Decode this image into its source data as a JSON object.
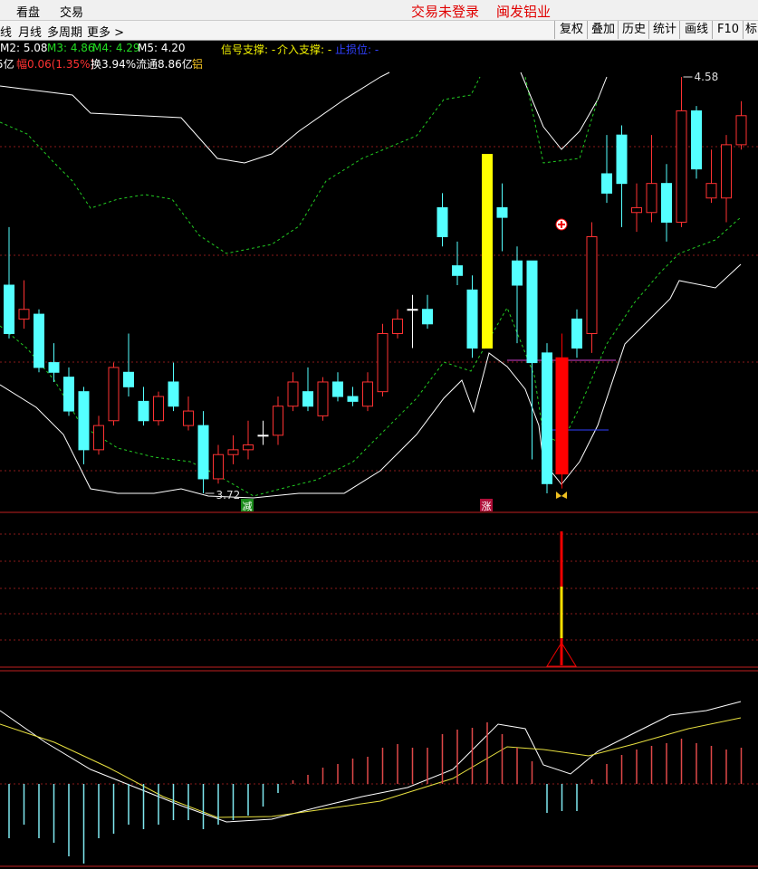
{
  "top_bar": {
    "menu": [
      "看盘",
      "交易"
    ],
    "status": "交易未登录",
    "stock": "闽发铝业"
  },
  "tabs": [
    "线",
    "月线",
    "多周期",
    "更多 >"
  ],
  "tools": [
    "复权",
    "叠加",
    "历史",
    "统计",
    "画线",
    "F10",
    "标"
  ],
  "ma_row": {
    "m2": "M2: 5.08",
    "m3": "M3: 4.86",
    "m4": "M4: 4.29",
    "m5": "M5: 4.20",
    "signal": "信号支撑: -",
    "entry": "介入支撑: -",
    "stop": "止损位: -"
  },
  "info_row": {
    "amount": "5亿",
    "change": "幅0.06(1.35%)",
    "turnover": "换3.94%",
    "float": "流通8.86亿",
    "sector": "铝"
  },
  "chart": {
    "high": 4.58,
    "low": 3.72,
    "up_color": "#ff3232",
    "down_color": "#54ffff",
    "doji_color": "#ffffff",
    "markers": [
      {
        "label": "减",
        "color": "#1a8a1a"
      },
      {
        "label": "涨",
        "color": "#b0103a"
      }
    ],
    "candles": [
      {
        "o": 4.15,
        "h": 4.27,
        "l": 4.04,
        "c": 4.05
      },
      {
        "o": 4.08,
        "h": 4.16,
        "l": 4.06,
        "c": 4.1
      },
      {
        "o": 4.09,
        "h": 4.1,
        "l": 3.97,
        "c": 3.98
      },
      {
        "o": 3.99,
        "h": 4.03,
        "l": 3.95,
        "c": 3.97
      },
      {
        "o": 3.96,
        "h": 3.98,
        "l": 3.88,
        "c": 3.89
      },
      {
        "o": 3.93,
        "h": 3.94,
        "l": 3.78,
        "c": 3.81
      },
      {
        "o": 3.81,
        "h": 3.88,
        "l": 3.8,
        "c": 3.86
      },
      {
        "o": 3.87,
        "h": 3.99,
        "l": 3.86,
        "c": 3.98
      },
      {
        "o": 3.97,
        "h": 4.05,
        "l": 3.92,
        "c": 3.94
      },
      {
        "o": 3.91,
        "h": 3.94,
        "l": 3.86,
        "c": 3.87
      },
      {
        "o": 3.87,
        "h": 3.93,
        "l": 3.86,
        "c": 3.92
      },
      {
        "o": 3.95,
        "h": 3.99,
        "l": 3.89,
        "c": 3.9
      },
      {
        "o": 3.86,
        "h": 3.92,
        "l": 3.85,
        "c": 3.89
      },
      {
        "o": 3.86,
        "h": 3.89,
        "l": 3.72,
        "c": 3.75
      },
      {
        "o": 3.75,
        "h": 3.82,
        "l": 3.74,
        "c": 3.8
      },
      {
        "o": 3.8,
        "h": 3.84,
        "l": 3.78,
        "c": 3.81
      },
      {
        "o": 3.81,
        "h": 3.87,
        "l": 3.79,
        "c": 3.82
      },
      {
        "o": 3.84,
        "h": 3.87,
        "l": 3.82,
        "c": 3.84
      },
      {
        "o": 3.84,
        "h": 3.92,
        "l": 3.82,
        "c": 3.9
      },
      {
        "o": 3.9,
        "h": 3.97,
        "l": 3.89,
        "c": 3.95
      },
      {
        "o": 3.93,
        "h": 3.98,
        "l": 3.89,
        "c": 3.9
      },
      {
        "o": 3.88,
        "h": 3.96,
        "l": 3.87,
        "c": 3.95
      },
      {
        "o": 3.95,
        "h": 3.97,
        "l": 3.91,
        "c": 3.92
      },
      {
        "o": 3.92,
        "h": 3.94,
        "l": 3.9,
        "c": 3.91
      },
      {
        "o": 3.9,
        "h": 3.97,
        "l": 3.89,
        "c": 3.95
      },
      {
        "o": 3.93,
        "h": 4.07,
        "l": 3.92,
        "c": 4.05
      },
      {
        "o": 4.05,
        "h": 4.1,
        "l": 4.04,
        "c": 4.08
      },
      {
        "o": 4.1,
        "h": 4.13,
        "l": 4.02,
        "c": 4.1
      },
      {
        "o": 4.1,
        "h": 4.13,
        "l": 4.06,
        "c": 4.07
      },
      {
        "o": 4.31,
        "h": 4.34,
        "l": 4.23,
        "c": 4.25
      },
      {
        "o": 4.19,
        "h": 4.24,
        "l": 4.15,
        "c": 4.17
      },
      {
        "o": 4.14,
        "h": 4.17,
        "l": 4.0,
        "c": 4.02
      },
      {
        "o": 4.42,
        "h": 4.42,
        "l": 4.02,
        "c": 4.02,
        "color": "#ffff00"
      },
      {
        "o": 4.31,
        "h": 4.36,
        "l": 4.22,
        "c": 4.29
      },
      {
        "o": 4.2,
        "h": 4.23,
        "l": 4.03,
        "c": 4.15
      },
      {
        "o": 4.2,
        "h": 4.2,
        "l": 3.79,
        "c": 3.99
      },
      {
        "o": 4.01,
        "h": 4.03,
        "l": 3.72,
        "c": 3.74
      },
      {
        "o": 3.76,
        "h": 4.05,
        "l": 3.73,
        "c": 4.0,
        "color": "#ff0000"
      },
      {
        "o": 4.08,
        "h": 4.1,
        "l": 4.0,
        "c": 4.02
      },
      {
        "o": 4.05,
        "h": 4.28,
        "l": 4.01,
        "c": 4.25
      },
      {
        "o": 4.38,
        "h": 4.46,
        "l": 4.32,
        "c": 4.34
      },
      {
        "o": 4.46,
        "h": 4.48,
        "l": 4.27,
        "c": 4.36
      },
      {
        "o": 4.3,
        "h": 4.36,
        "l": 4.26,
        "c": 4.31
      },
      {
        "o": 4.3,
        "h": 4.46,
        "l": 4.28,
        "c": 4.36
      },
      {
        "o": 4.36,
        "h": 4.4,
        "l": 4.24,
        "c": 4.28
      },
      {
        "o": 4.28,
        "h": 4.58,
        "l": 4.27,
        "c": 4.51
      },
      {
        "o": 4.51,
        "h": 4.52,
        "l": 4.37,
        "c": 4.39
      },
      {
        "o": 4.33,
        "h": 4.43,
        "l": 4.32,
        "c": 4.36
      },
      {
        "o": 4.33,
        "h": 4.46,
        "l": 4.28,
        "c": 4.44
      },
      {
        "o": 4.44,
        "h": 4.53,
        "l": 4.43,
        "c": 4.5
      }
    ]
  },
  "macd": {
    "up_color": "#e04848",
    "down_color": "#7fe8f0",
    "values": [
      -60,
      -45,
      -60,
      -65,
      -80,
      -88,
      -60,
      -55,
      -45,
      -50,
      -45,
      -40,
      -40,
      -50,
      -45,
      -40,
      -35,
      -25,
      -10,
      4,
      10,
      18,
      22,
      28,
      30,
      40,
      44,
      40,
      40,
      55,
      60,
      62,
      68,
      55,
      40,
      25,
      -32,
      -30,
      -30,
      5,
      22,
      32,
      38,
      42,
      45,
      50,
      45,
      42,
      38,
      40
    ]
  }
}
